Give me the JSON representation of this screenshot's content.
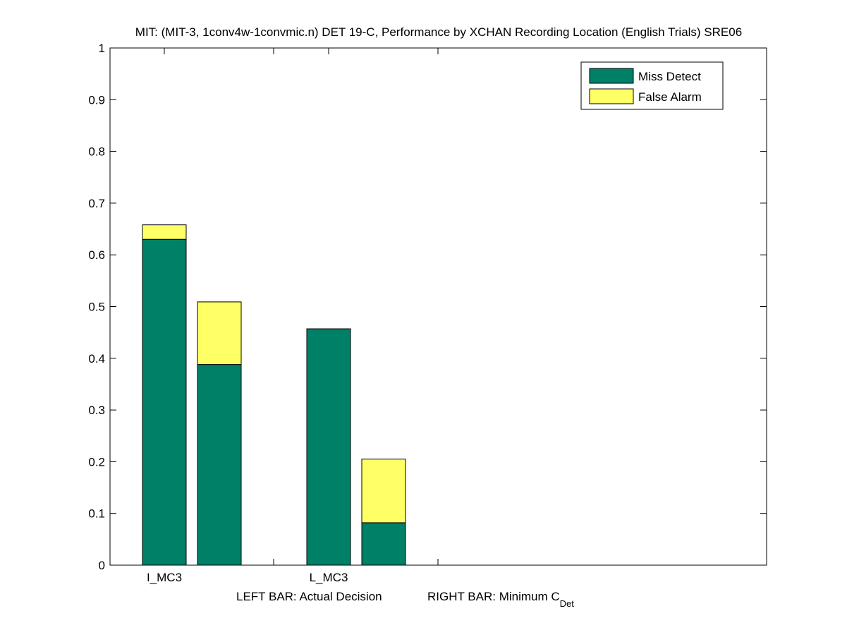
{
  "chart_data": {
    "type": "bar",
    "stacked": true,
    "title": "MIT: (MIT-3, 1conv4w-1convmic.n) DET 19-C,  Performance by XCHAN Recording Location (English Trials) SRE06",
    "xlabel": {
      "left": "LEFT BAR: Actual Decision",
      "right": "RIGHT BAR: Minimum C",
      "right_subscript": "Det"
    },
    "ylabel": "",
    "ylim": [
      0,
      1
    ],
    "yticks": [
      "0",
      "0.1",
      "0.2",
      "0.3",
      "0.4",
      "0.5",
      "0.6",
      "0.7",
      "0.8",
      "0.9",
      "1"
    ],
    "categories": [
      "I_MC3",
      "L_MC3"
    ],
    "legend_position": "top-right",
    "grid": false,
    "series": [
      {
        "name": "Miss Detect",
        "color": "#008066"
      },
      {
        "name": "False Alarm",
        "color": "#ffff66"
      }
    ],
    "bars": [
      {
        "category": "I_MC3",
        "bar": "Actual Decision",
        "miss_detect": 0.63,
        "false_alarm": 0.028
      },
      {
        "category": "I_MC3",
        "bar": "Minimum C_Det",
        "miss_detect": 0.388,
        "false_alarm": 0.121
      },
      {
        "category": "L_MC3",
        "bar": "Actual Decision",
        "miss_detect": 0.457,
        "false_alarm": 0.0
      },
      {
        "category": "L_MC3",
        "bar": "Minimum C_Det",
        "miss_detect": 0.082,
        "false_alarm": 0.123
      }
    ]
  }
}
